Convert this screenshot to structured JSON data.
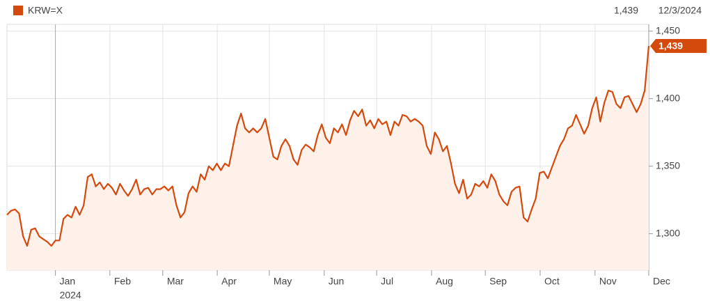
{
  "header": {
    "symbol": "KRW=X",
    "last_price": "1,439",
    "date": "12/3/2024"
  },
  "chart_data": {
    "type": "area",
    "series": [
      {
        "name": "KRW=X",
        "color": "#d4490c",
        "fill": "#fdf1ea",
        "values": [
          1314,
          1317,
          1318,
          1315,
          1298,
          1291,
          1303,
          1304,
          1298,
          1296,
          1294,
          1291,
          1295,
          1295,
          1311,
          1314,
          1312,
          1320,
          1314,
          1321,
          1342,
          1344,
          1335,
          1338,
          1333,
          1337,
          1334,
          1329,
          1337,
          1332,
          1328,
          1333,
          1340,
          1329,
          1333,
          1334,
          1329,
          1333,
          1333,
          1335,
          1332,
          1335,
          1321,
          1312,
          1316,
          1330,
          1335,
          1331,
          1344,
          1340,
          1350,
          1347,
          1352,
          1347,
          1352,
          1350,
          1365,
          1380,
          1389,
          1378,
          1375,
          1378,
          1375,
          1378,
          1385,
          1371,
          1357,
          1355,
          1365,
          1370,
          1365,
          1355,
          1351,
          1362,
          1366,
          1364,
          1361,
          1373,
          1381,
          1371,
          1367,
          1378,
          1375,
          1381,
          1373,
          1384,
          1391,
          1387,
          1392,
          1380,
          1384,
          1378,
          1385,
          1381,
          1383,
          1373,
          1383,
          1380,
          1388,
          1387,
          1383,
          1385,
          1383,
          1380,
          1365,
          1359,
          1375,
          1370,
          1361,
          1365,
          1352,
          1337,
          1330,
          1340,
          1326,
          1329,
          1337,
          1335,
          1339,
          1334,
          1344,
          1339,
          1329,
          1324,
          1321,
          1331,
          1334,
          1335,
          1312,
          1309,
          1318,
          1326,
          1345,
          1346,
          1341,
          1349,
          1357,
          1365,
          1370,
          1378,
          1380,
          1388,
          1381,
          1374,
          1380,
          1393,
          1401,
          1383,
          1397,
          1406,
          1405,
          1396,
          1393,
          1401,
          1402,
          1396,
          1390,
          1396,
          1406,
          1439
        ]
      }
    ],
    "xlim": [
      0,
      159
    ],
    "xticks": [
      {
        "value": 12,
        "label": "Jan"
      },
      {
        "value": 25.5,
        "label": "Feb"
      },
      {
        "value": 38.6,
        "label": "Mar"
      },
      {
        "value": 52.1,
        "label": "Apr"
      },
      {
        "value": 65,
        "label": "May"
      },
      {
        "value": 78.6,
        "label": "Jun"
      },
      {
        "value": 91.6,
        "label": "Jul"
      },
      {
        "value": 105.2,
        "label": "Aug"
      },
      {
        "value": 118.5,
        "label": "Sep"
      },
      {
        "value": 132.1,
        "label": "Oct"
      },
      {
        "value": 145.7,
        "label": "Nov"
      },
      {
        "value": 159,
        "label": "Dec"
      }
    ],
    "year_label": "2024",
    "ylim": [
      1273,
      1455
    ],
    "yticks": [
      {
        "value": 1300,
        "label": "1,300"
      },
      {
        "value": 1350,
        "label": "1,350"
      },
      {
        "value": 1400,
        "label": "1,400"
      },
      {
        "value": 1450,
        "label": "1,450"
      }
    ],
    "grid": true
  }
}
